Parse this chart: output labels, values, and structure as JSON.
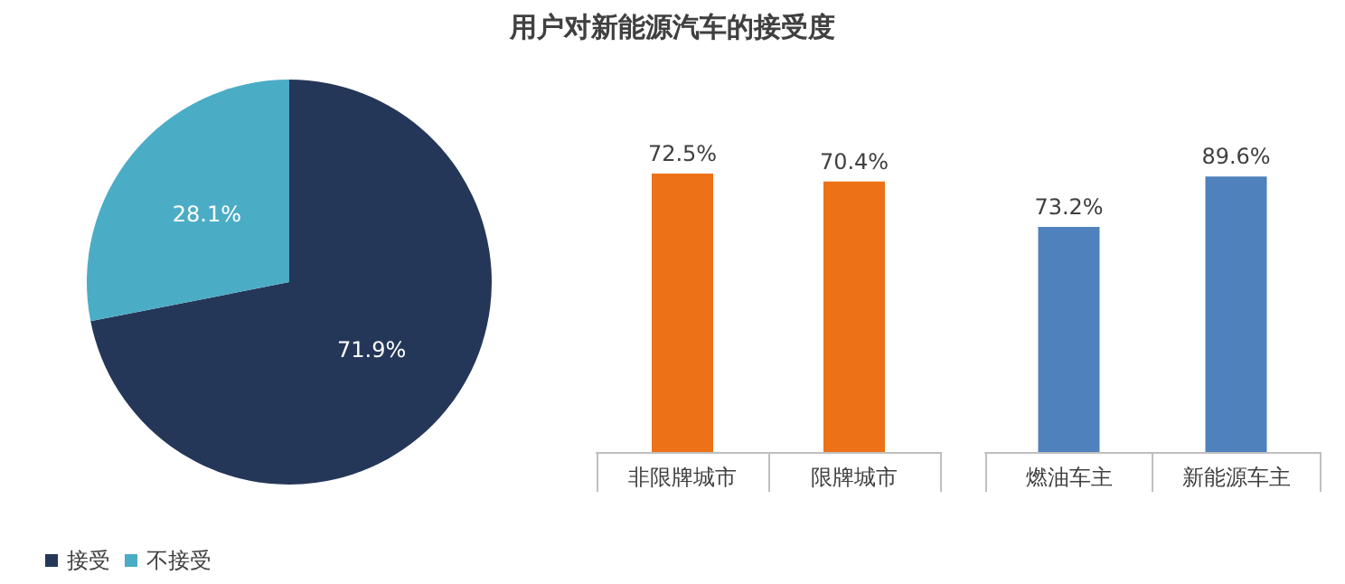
{
  "chart_data": [
    {
      "type": "pie",
      "title": "用户对新能源汽车的接受度",
      "categories": [
        "接受",
        "不接受"
      ],
      "values": [
        71.9,
        28.1
      ],
      "colors": [
        "#253759",
        "#4bacc6"
      ],
      "value_labels": [
        "71.9%",
        "28.1%"
      ],
      "legend": "bottom left"
    },
    {
      "type": "bar",
      "categories": [
        "非限牌城市",
        "限牌城市"
      ],
      "series": [
        {
          "color": "#ed7117",
          "values": [
            72.5,
            70.4
          ],
          "value_labels": [
            "72.5%",
            "70.4%"
          ]
        }
      ],
      "tick_labels": "x"
    },
    {
      "type": "bar",
      "categories": [
        "燃油车主",
        "新能源车主"
      ],
      "series": [
        {
          "color": "#4f81bd",
          "values": [
            73.2,
            89.6
          ],
          "value_labels": [
            "73.2%",
            "89.6%"
          ]
        }
      ],
      "tick_labels": "x"
    }
  ]
}
